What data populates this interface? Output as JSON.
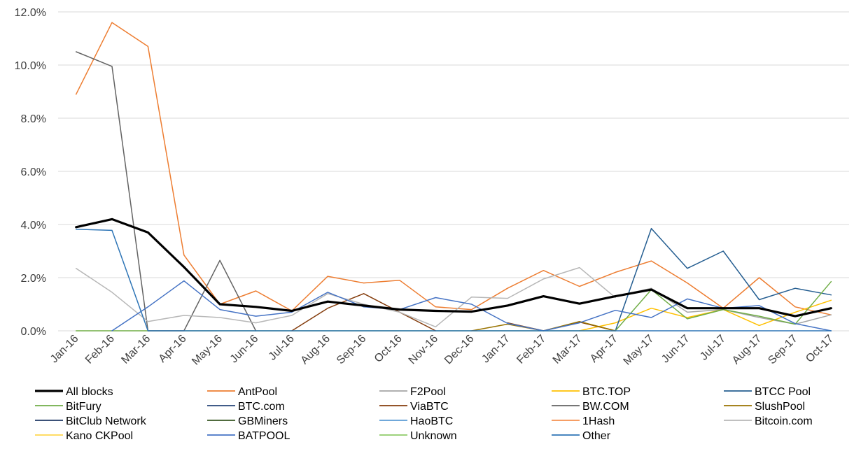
{
  "chart_data": {
    "type": "line",
    "title": "",
    "xlabel": "",
    "ylabel": "",
    "ylim": [
      0,
      12
    ],
    "y_ticks": [
      "0.0%",
      "2.0%",
      "4.0%",
      "6.0%",
      "8.0%",
      "10.0%",
      "12.0%"
    ],
    "y_tick_values": [
      0,
      2,
      4,
      6,
      8,
      10,
      12
    ],
    "grid": "horizontal",
    "legend_position": "bottom",
    "categories": [
      "Jan-16",
      "Feb-16",
      "Mar-16",
      "Apr-16",
      "May-16",
      "Jun-16",
      "Jul-16",
      "Aug-16",
      "Sep-16",
      "Oct-16",
      "Nov-16",
      "Dec-16",
      "Jan-17",
      "Feb-17",
      "Mar-17",
      "Apr-17",
      "May-17",
      "Jun-17",
      "Jul-17",
      "Aug-17",
      "Sep-17",
      "Oct-17"
    ],
    "series": [
      {
        "name": "All blocks",
        "color": "#000000",
        "width": 3.2,
        "values": [
          3.9,
          4.2,
          3.7,
          2.4,
          1.0,
          0.9,
          0.75,
          1.1,
          0.95,
          0.8,
          0.75,
          0.72,
          0.95,
          1.3,
          1.02,
          1.3,
          1.55,
          0.85,
          0.85,
          0.85,
          0.55,
          0.85
        ]
      },
      {
        "name": "AntPool",
        "color": "#ED7D31",
        "width": 1.5,
        "values": [
          8.9,
          11.6,
          10.7,
          2.85,
          1.0,
          1.5,
          0.75,
          2.05,
          1.8,
          1.9,
          0.9,
          0.8,
          1.6,
          2.27,
          1.67,
          2.2,
          2.63,
          1.8,
          0.85,
          2.0,
          0.9,
          0.6
        ]
      },
      {
        "name": "F2Pool",
        "color": "#A5A5A5",
        "width": 1.5,
        "values": [
          null,
          null,
          null,
          null,
          null,
          null,
          null,
          null,
          null,
          null,
          null,
          null,
          null,
          null,
          null,
          1.3,
          1.6,
          0.7,
          0.8,
          0.5,
          0.25,
          0.6
        ]
      },
      {
        "name": "BTC.TOP",
        "color": "#FFC000",
        "width": 1.5,
        "values": [
          null,
          null,
          null,
          null,
          null,
          null,
          null,
          null,
          null,
          null,
          null,
          null,
          null,
          null,
          0.0,
          0.3,
          0.85,
          0.5,
          0.8,
          0.2,
          0.7,
          1.15
        ]
      },
      {
        "name": "BTCC Pool",
        "color": "#255E91",
        "width": 1.5,
        "values": [
          null,
          null,
          null,
          null,
          null,
          null,
          null,
          null,
          null,
          null,
          null,
          null,
          null,
          null,
          null,
          0.0,
          3.85,
          2.35,
          3.0,
          1.17,
          1.6,
          1.35
        ]
      },
      {
        "name": "BitFury",
        "color": "#70AD47",
        "width": 1.5,
        "values": [
          0,
          0,
          0,
          0,
          0,
          0,
          0,
          0,
          0,
          0,
          0,
          0,
          0,
          0,
          0,
          0,
          1.55,
          0.45,
          0.8,
          0.55,
          0.25,
          1.85
        ]
      },
      {
        "name": "BTC.com",
        "color": "#264478",
        "width": 1.5,
        "values": [
          null,
          null,
          null,
          null,
          null,
          null,
          null,
          null,
          null,
          null,
          null,
          null,
          null,
          null,
          null,
          null,
          null,
          null,
          null,
          null,
          null,
          null
        ]
      },
      {
        "name": "ViaBTC",
        "color": "#843C0C",
        "width": 1.5,
        "values": [
          null,
          null,
          null,
          null,
          null,
          null,
          0.0,
          0.85,
          1.4,
          0.7,
          0.0,
          null,
          0.3,
          0.0,
          0.33,
          0.0,
          null,
          null,
          null,
          null,
          null,
          null
        ]
      },
      {
        "name": "BW.COM",
        "color": "#636363",
        "width": 1.5,
        "values": [
          10.5,
          9.95,
          0.0,
          0.0,
          2.65,
          0.0,
          null,
          null,
          null,
          null,
          null,
          null,
          null,
          null,
          null,
          null,
          null,
          null,
          null,
          null,
          null,
          null
        ]
      },
      {
        "name": "SlushPool",
        "color": "#997300",
        "width": 1.5,
        "values": [
          null,
          null,
          null,
          null,
          null,
          null,
          null,
          null,
          null,
          null,
          null,
          0.0,
          0.25,
          0.0,
          0.35,
          0.0,
          null,
          null,
          null,
          null,
          null,
          null
        ]
      },
      {
        "name": "BitClub Network",
        "color": "#1F3864",
        "width": 1.5,
        "values": [
          null,
          null,
          null,
          null,
          null,
          null,
          null,
          null,
          null,
          null,
          null,
          null,
          null,
          null,
          null,
          null,
          null,
          null,
          null,
          null,
          null,
          null
        ]
      },
      {
        "name": "GBMiners",
        "color": "#375623",
        "width": 1.5,
        "values": [
          null,
          null,
          null,
          null,
          null,
          null,
          null,
          null,
          null,
          null,
          null,
          null,
          null,
          null,
          null,
          null,
          null,
          null,
          null,
          null,
          null,
          null
        ]
      },
      {
        "name": "HaoBTC",
        "color": "#5B9BD5",
        "width": 1.5,
        "values": [
          null,
          null,
          null,
          null,
          null,
          null,
          null,
          null,
          null,
          null,
          null,
          null,
          null,
          null,
          null,
          null,
          null,
          null,
          null,
          null,
          null,
          null
        ]
      },
      {
        "name": "1Hash",
        "color": "#F4914F",
        "width": 1.5,
        "values": [
          null,
          null,
          null,
          null,
          null,
          null,
          null,
          null,
          null,
          null,
          null,
          null,
          null,
          null,
          null,
          null,
          null,
          null,
          null,
          null,
          null,
          null
        ]
      },
      {
        "name": "Bitcoin.com",
        "color": "#B7B7B7",
        "width": 1.5,
        "values": [
          2.35,
          1.45,
          0.35,
          0.58,
          0.5,
          0.3,
          0.58,
          1.4,
          1.0,
          0.7,
          0.15,
          1.27,
          1.22,
          1.95,
          2.38,
          1.25,
          null,
          null,
          null,
          null,
          null,
          null
        ]
      },
      {
        "name": "Kano CKPool",
        "color": "#FFD74F",
        "width": 1.5,
        "values": [
          null,
          null,
          null,
          null,
          null,
          null,
          null,
          null,
          null,
          null,
          null,
          null,
          null,
          null,
          null,
          null,
          null,
          null,
          null,
          null,
          null,
          null
        ]
      },
      {
        "name": "BATPOOL",
        "color": "#4472C4",
        "width": 1.5,
        "values": [
          null,
          0.0,
          0.9,
          1.88,
          0.8,
          0.55,
          0.7,
          1.45,
          0.9,
          0.8,
          1.25,
          1.0,
          0.28,
          0.0,
          0.3,
          0.77,
          0.5,
          1.2,
          0.85,
          0.95,
          0.27,
          0.0
        ]
      },
      {
        "name": "Unknown",
        "color": "#8FCB6A",
        "width": 1.5,
        "values": [
          null,
          null,
          null,
          null,
          null,
          null,
          null,
          null,
          null,
          null,
          null,
          null,
          null,
          null,
          null,
          null,
          null,
          null,
          null,
          null,
          null,
          null
        ]
      },
      {
        "name": "Other",
        "color": "#2E75B6",
        "width": 1.5,
        "values": [
          3.82,
          3.78,
          0.0,
          0.0,
          0.0,
          0.0,
          0.0,
          0.0,
          0.0,
          0.0,
          0.0,
          0.0,
          0.0,
          0.0,
          0.0,
          0.0,
          0.0,
          0.0,
          0.0,
          0.0,
          0.0,
          0.0
        ]
      }
    ]
  }
}
